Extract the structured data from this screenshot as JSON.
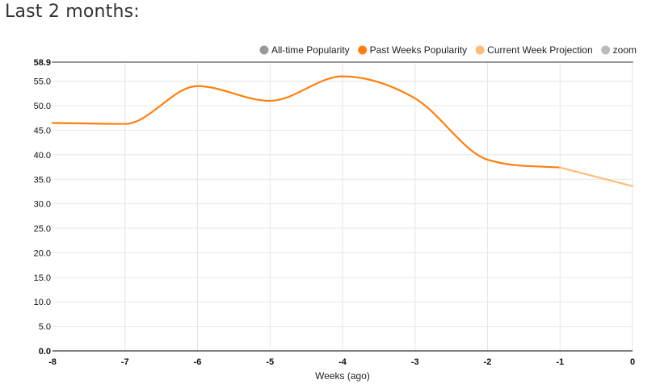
{
  "heading": "Last 2 months:",
  "chart_data": {
    "type": "line",
    "xlabel": "Weeks (ago)",
    "ylabel": "",
    "xlim": [
      -8,
      0
    ],
    "ylim": [
      0,
      58.9
    ],
    "x_ticks": [
      "-8",
      "-7",
      "-6",
      "-5",
      "-4",
      "-3",
      "-2",
      "-1",
      "0"
    ],
    "y_ticks": [
      "0.0",
      "5.0",
      "10.0",
      "15.0",
      "20.0",
      "25.0",
      "30.0",
      "35.0",
      "40.0",
      "45.0",
      "50.0",
      "55.0",
      "58.9"
    ],
    "grid": true,
    "legend": "top-right",
    "series": [
      {
        "name": "All-time Popularity",
        "color": "#999999",
        "x": [
          -8,
          0
        ],
        "y": [
          58.9,
          58.9
        ]
      },
      {
        "name": "Past Weeks Popularity",
        "color": "#ff7f0e",
        "x": [
          -8,
          -7,
          -6,
          -5,
          -4,
          -3,
          -2,
          -1
        ],
        "y": [
          46.5,
          46.3,
          54.0,
          51.0,
          56.0,
          51.5,
          39.0,
          37.4
        ]
      },
      {
        "name": "Current Week Projection",
        "color": "#ffbb78",
        "x": [
          -1,
          0
        ],
        "y": [
          37.4,
          33.6
        ]
      },
      {
        "name": "zoom",
        "color": "#bbbbbb",
        "x": [],
        "y": []
      }
    ]
  }
}
